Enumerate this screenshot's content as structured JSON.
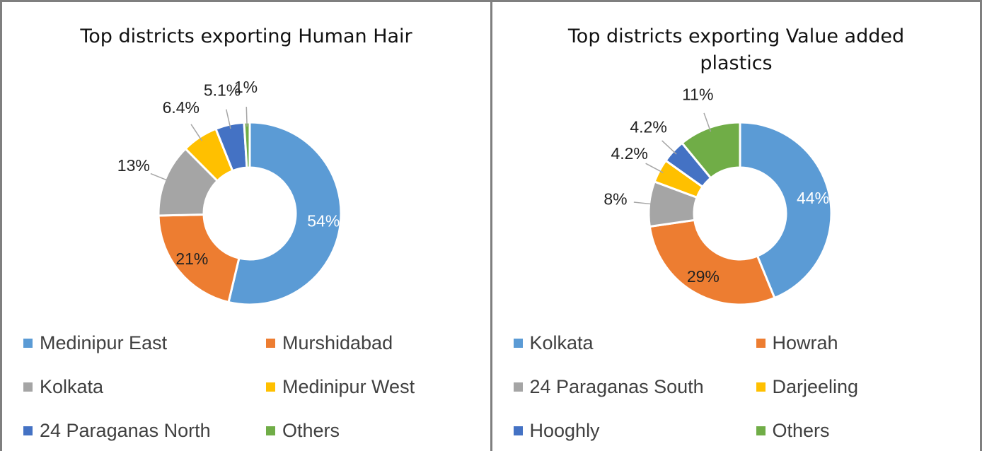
{
  "chart_data": [
    {
      "type": "pie",
      "title": "Top districts exporting Human Hair",
      "categories": [
        "Medinipur East",
        "Murshidabad",
        "Kolkata",
        "Medinipur West",
        "24 Paraganas North",
        "Others"
      ],
      "values": [
        54,
        21,
        13,
        6.4,
        5.1,
        1
      ],
      "value_labels": [
        "54%",
        "21%",
        "13%",
        "6.4%",
        "5.1%",
        "1%"
      ],
      "colors": [
        "#5b9bd5",
        "#ed7d31",
        "#a5a5a5",
        "#ffc000",
        "#4472c4",
        "#70ad47"
      ]
    },
    {
      "type": "pie",
      "title": "Top districts exporting Value added  plastics",
      "categories": [
        "Kolkata",
        "Howrah",
        "24 Paraganas South",
        "Darjeeling",
        "Hooghly",
        "Others"
      ],
      "values": [
        44,
        29,
        8,
        4.2,
        4.2,
        11
      ],
      "value_labels": [
        "44%",
        "29%",
        "8%",
        "4.2%",
        "4.2%",
        "11%"
      ],
      "colors": [
        "#5b9bd5",
        "#ed7d31",
        "#a5a5a5",
        "#ffc000",
        "#4472c4",
        "#70ad47"
      ]
    }
  ]
}
